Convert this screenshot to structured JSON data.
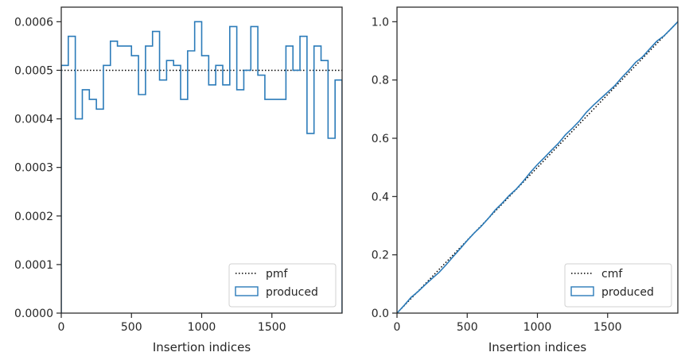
{
  "chart_data": [
    {
      "type": "line",
      "subtype": "step-histogram",
      "xlabel": "Insertion indices",
      "ylabel": "",
      "xlim": [
        0,
        2000
      ],
      "ylim": [
        0,
        0.00063
      ],
      "xticks": [
        0,
        500,
        1000,
        1500
      ],
      "xtick_labels": [
        "0",
        "500",
        "1000",
        "1500"
      ],
      "yticks": [
        0,
        0.0001,
        0.0002,
        0.0003,
        0.0004,
        0.0005,
        0.0006
      ],
      "ytick_labels": [
        "0.0000",
        "0.0001",
        "0.0002",
        "0.0003",
        "0.0004",
        "0.0005",
        "0.0006"
      ],
      "grid": false,
      "legend_position": "lower-right",
      "series": [
        {
          "name": "pmf",
          "style": "dotted",
          "color": "#000000",
          "x": [
            0,
            2000
          ],
          "y": [
            0.0005,
            0.0005
          ]
        },
        {
          "name": "produced",
          "style": "step",
          "color": "#2b7bb9",
          "bin_edges": [
            0,
            50,
            100,
            150,
            200,
            250,
            300,
            350,
            400,
            450,
            500,
            550,
            600,
            650,
            700,
            750,
            800,
            850,
            900,
            950,
            1000,
            1050,
            1100,
            1150,
            1200,
            1250,
            1300,
            1350,
            1400,
            1450,
            1500,
            1550,
            1600,
            1650,
            1700,
            1750,
            1800,
            1850,
            1900,
            1950,
            2000
          ],
          "values": [
            0.00051,
            0.00057,
            0.0004,
            0.00046,
            0.00044,
            0.00042,
            0.00051,
            0.00056,
            0.00055,
            0.00055,
            0.00053,
            0.00045,
            0.00055,
            0.00058,
            0.00048,
            0.00052,
            0.00051,
            0.00044,
            0.00054,
            0.0006,
            0.00053,
            0.00047,
            0.00051,
            0.00047,
            0.00059,
            0.00046,
            0.0005,
            0.00059,
            0.00049,
            0.00044,
            0.00044,
            0.00044,
            0.00055,
            0.0005,
            0.00057,
            0.00037,
            0.00055,
            0.00052,
            0.00036,
            0.00048
          ]
        }
      ]
    },
    {
      "type": "line",
      "xlabel": "Insertion indices",
      "ylabel": "",
      "xlim": [
        0,
        2000
      ],
      "ylim": [
        0,
        1.05
      ],
      "xticks": [
        0,
        500,
        1000,
        1500
      ],
      "xtick_labels": [
        "0",
        "500",
        "1000",
        "1500"
      ],
      "yticks": [
        0,
        0.2,
        0.4,
        0.6,
        0.8,
        1.0
      ],
      "ytick_labels": [
        "0.0",
        "0.2",
        "0.4",
        "0.6",
        "0.8",
        "1.0"
      ],
      "grid": false,
      "legend_position": "lower-right",
      "series": [
        {
          "name": "cmf",
          "style": "dotted",
          "color": "#000000",
          "x": [
            0,
            2000
          ],
          "y": [
            0,
            1.0
          ]
        },
        {
          "name": "produced",
          "style": "solid",
          "color": "#2b7bb9",
          "x": [
            0,
            50,
            100,
            150,
            200,
            250,
            300,
            350,
            400,
            450,
            500,
            550,
            600,
            650,
            700,
            750,
            800,
            850,
            900,
            950,
            1000,
            1050,
            1100,
            1150,
            1200,
            1250,
            1300,
            1350,
            1400,
            1450,
            1500,
            1550,
            1600,
            1650,
            1700,
            1750,
            1800,
            1850,
            1900,
            1950,
            2000
          ],
          "y": [
            0,
            0.026,
            0.054,
            0.074,
            0.097,
            0.119,
            0.14,
            0.166,
            0.194,
            0.221,
            0.249,
            0.275,
            0.298,
            0.325,
            0.354,
            0.378,
            0.404,
            0.426,
            0.453,
            0.483,
            0.51,
            0.534,
            0.559,
            0.583,
            0.612,
            0.635,
            0.66,
            0.69,
            0.714,
            0.736,
            0.758,
            0.78,
            0.808,
            0.833,
            0.861,
            0.88,
            0.907,
            0.933,
            0.951,
            0.975,
            1.0
          ]
        }
      ]
    }
  ]
}
